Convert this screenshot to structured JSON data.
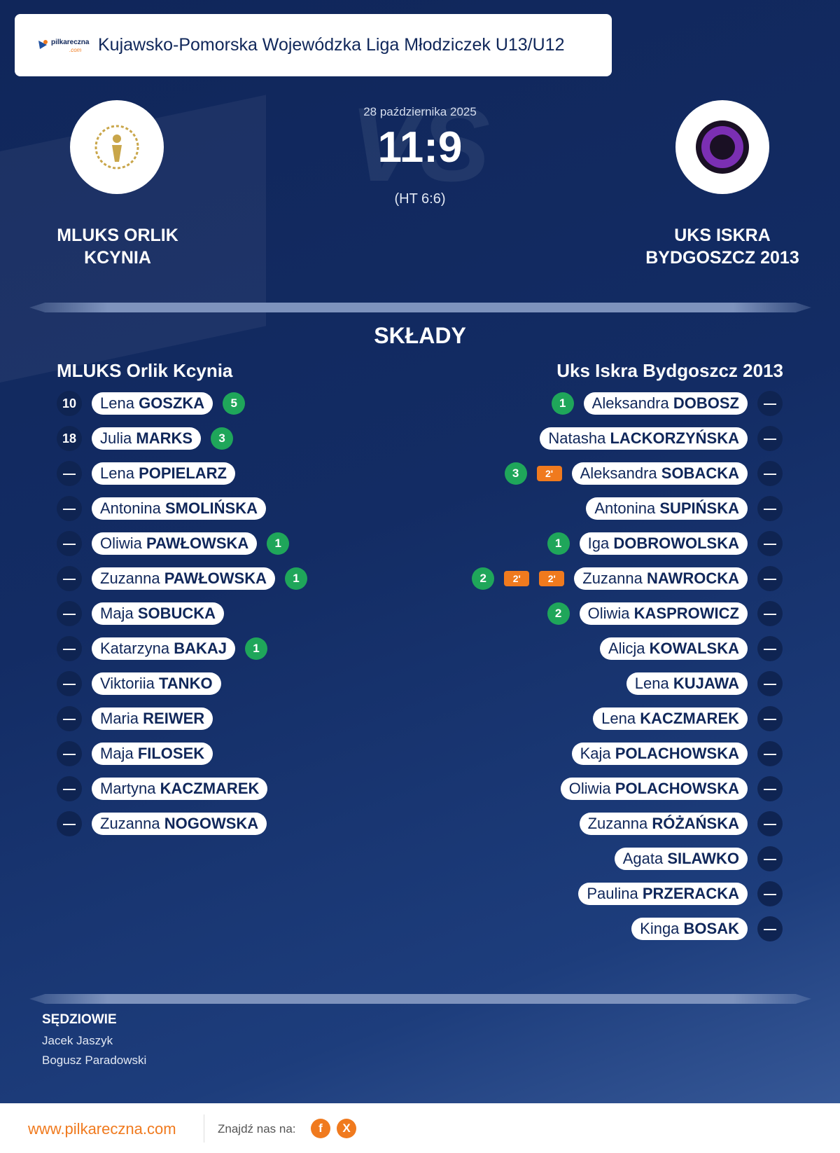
{
  "header": {
    "logo_text": "pilkareczna",
    "logo_sub": ".com",
    "title": "Kujawsko-Pomorska Wojewódzka Liga Młodziczek U13/U12"
  },
  "match": {
    "vs": "VS",
    "date": "28 października 2025",
    "score": "11:9",
    "halftime": "(HT 6:6)",
    "home_team": "MLUKS ORLIK KCYNIA",
    "away_team": "UKS ISKRA BYDGOSZCZ 2013"
  },
  "lineups": {
    "title": "SKŁADY",
    "home": {
      "name": "MLUKS Orlik Kcynia",
      "players": [
        {
          "number": 10,
          "first": "Lena",
          "last": "GOSZKA",
          "goals": 5
        },
        {
          "number": 18,
          "first": "Julia",
          "last": "MARKS",
          "goals": 3
        },
        {
          "number": "—",
          "first": "Lena",
          "last": "POPIELARZ"
        },
        {
          "number": "—",
          "first": "Antonina",
          "last": "SMOLIŃSKA"
        },
        {
          "number": "—",
          "first": "Oliwia",
          "last": "PAWŁOWSKA",
          "goals": 1
        },
        {
          "number": "—",
          "first": "Zuzanna",
          "last": "PAWŁOWSKA",
          "goals": 1
        },
        {
          "number": "—",
          "first": "Maja",
          "last": "SOBUCKA"
        },
        {
          "number": "—",
          "first": "Katarzyna",
          "last": "BAKAJ",
          "goals": 1
        },
        {
          "number": "—",
          "first": "Viktoriia",
          "last": "TANKO"
        },
        {
          "number": "—",
          "first": "Maria",
          "last": "REIWER"
        },
        {
          "number": "—",
          "first": "Maja",
          "last": "FILOSEK"
        },
        {
          "number": "—",
          "first": "Martyna",
          "last": "KACZMAREK"
        },
        {
          "number": "—",
          "first": "Zuzanna",
          "last": "NOGOWSKA"
        }
      ]
    },
    "away": {
      "name": "Uks Iskra Bydgoszcz 2013",
      "players": [
        {
          "number": "—",
          "first": "Aleksandra",
          "last": "DOBOSZ",
          "goals": 1
        },
        {
          "number": "—",
          "first": "Natasha",
          "last": "LACKORZYŃSKA"
        },
        {
          "number": "—",
          "first": "Aleksandra",
          "last": "SOBACKA",
          "goals": 3,
          "penalties": [
            "2'"
          ]
        },
        {
          "number": "—",
          "first": "Antonina",
          "last": "SUPIŃSKA"
        },
        {
          "number": "—",
          "first": "Iga",
          "last": "DOBROWOLSKA",
          "goals": 1
        },
        {
          "number": "—",
          "first": "Zuzanna",
          "last": "NAWROCKA",
          "goals": 2,
          "penalties": [
            "2'",
            "2'"
          ]
        },
        {
          "number": "—",
          "first": "Oliwia",
          "last": "KASPROWICZ",
          "goals": 2
        },
        {
          "number": "—",
          "first": "Alicja",
          "last": "KOWALSKA"
        },
        {
          "number": "—",
          "first": "Lena",
          "last": "KUJAWA"
        },
        {
          "number": "—",
          "first": "Lena",
          "last": "KACZMAREK"
        },
        {
          "number": "—",
          "first": "Kaja",
          "last": "POLACHOWSKA"
        },
        {
          "number": "—",
          "first": "Oliwia",
          "last": "POLACHOWSKA"
        },
        {
          "number": "—",
          "first": "Zuzanna",
          "last": "RÓŻAŃSKA"
        },
        {
          "number": "—",
          "first": "Agata",
          "last": "SILAWKO"
        },
        {
          "number": "—",
          "first": "Paulina",
          "last": "PRZERACKA"
        },
        {
          "number": "—",
          "first": "Kinga",
          "last": "BOSAK"
        }
      ]
    }
  },
  "referees": {
    "title": "SĘDZIOWIE",
    "names": [
      "Jacek Jaszyk",
      "Bogusz Paradowski"
    ]
  },
  "footer": {
    "url": "www.pilkareczna.com",
    "find_us": "Znajdź nas na:",
    "facebook": "f",
    "x": "X"
  }
}
